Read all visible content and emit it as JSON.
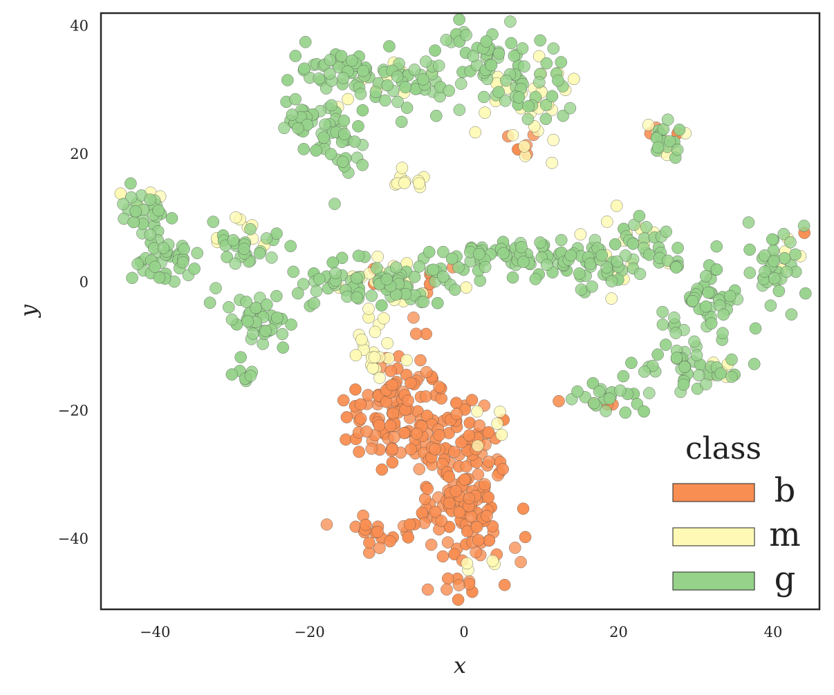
{
  "chart_data": {
    "type": "scatter",
    "xlabel": "x",
    "ylabel": "y",
    "xlim": [
      -47,
      46
    ],
    "ylim": [
      -51,
      42
    ],
    "xticks": [
      -40,
      -20,
      0,
      20,
      40
    ],
    "yticks": [
      -40,
      -20,
      0,
      20,
      40
    ],
    "xtick_labels": [
      "−40",
      "−20",
      "0",
      "20",
      "40"
    ],
    "ytick_labels": [
      "−40",
      "−20",
      "0",
      "20",
      "40"
    ],
    "grid": false,
    "legend": {
      "title": "class",
      "placement": "bottom-right",
      "entries": [
        "b",
        "m",
        "g"
      ]
    },
    "colors": {
      "b": "#f98e52",
      "m": "#fefab5",
      "g": "#96d28a"
    },
    "series": [
      {
        "name": "b",
        "clusters": [
          {
            "x": -8,
            "y": -20,
            "sx": 3.5,
            "sy": 5,
            "n": 120
          },
          {
            "x": 0,
            "y": -34,
            "sx": 3,
            "sy": 6,
            "n": 130
          },
          {
            "x": 2,
            "y": -24,
            "sx": 2,
            "sy": 3,
            "n": 25
          },
          {
            "x": -10,
            "y": -39,
            "sx": 2.5,
            "sy": 1.5,
            "n": 20
          },
          {
            "x": 7,
            "y": 21,
            "sx": 1.5,
            "sy": 1.5,
            "n": 5
          },
          {
            "x": 26,
            "y": 24,
            "sx": 1,
            "sy": 1,
            "n": 3
          },
          {
            "x": 18,
            "y": -20,
            "sx": 2,
            "sy": 1,
            "n": 4
          },
          {
            "x": -8,
            "y": 1,
            "sx": 5,
            "sy": 1.5,
            "n": 8
          },
          {
            "x": 44,
            "y": 8,
            "sx": 0.5,
            "sy": 0.5,
            "n": 1
          }
        ]
      },
      {
        "name": "m",
        "clusters": [
          {
            "x": -11,
            "y": -11,
            "sx": 2,
            "sy": 2,
            "n": 20
          },
          {
            "x": 3,
            "y": -22,
            "sx": 1.5,
            "sy": 1.5,
            "n": 5
          },
          {
            "x": 9,
            "y": 28,
            "sx": 3,
            "sy": 4,
            "n": 30
          },
          {
            "x": -7,
            "y": 16,
            "sx": 1.5,
            "sy": 1,
            "n": 10
          },
          {
            "x": 20,
            "y": 6,
            "sx": 3,
            "sy": 3,
            "n": 15
          },
          {
            "x": -10,
            "y": 0,
            "sx": 5,
            "sy": 2,
            "n": 20
          },
          {
            "x": 26,
            "y": 22,
            "sx": 1.5,
            "sy": 1.5,
            "n": 10
          },
          {
            "x": 34,
            "y": -14,
            "sx": 1,
            "sy": 2,
            "n": 6
          },
          {
            "x": -42,
            "y": 13,
            "sx": 2,
            "sy": 1,
            "n": 4
          },
          {
            "x": -28,
            "y": 7,
            "sx": 3,
            "sy": 1.5,
            "n": 8
          },
          {
            "x": 1,
            "y": -43,
            "sx": 1.5,
            "sy": 1.5,
            "n": 4
          },
          {
            "x": -8,
            "y": 33,
            "sx": 4,
            "sy": 3,
            "n": 10
          },
          {
            "x": 42,
            "y": 4,
            "sx": 1.5,
            "sy": 2,
            "n": 5
          }
        ]
      },
      {
        "name": "g",
        "clusters": [
          {
            "x": -16,
            "y": 33,
            "sx": 3,
            "sy": 1.5,
            "n": 40
          },
          {
            "x": -8,
            "y": 31,
            "sx": 3,
            "sy": 2,
            "n": 40
          },
          {
            "x": -20,
            "y": 24,
            "sx": 2.5,
            "sy": 2,
            "n": 30
          },
          {
            "x": -16,
            "y": 21,
            "sx": 1.5,
            "sy": 3,
            "n": 25
          },
          {
            "x": 3,
            "y": 35,
            "sx": 3.5,
            "sy": 2.5,
            "n": 45
          },
          {
            "x": 9,
            "y": 30,
            "sx": 3,
            "sy": 2.5,
            "n": 30
          },
          {
            "x": 26,
            "y": 22,
            "sx": 1.5,
            "sy": 2,
            "n": 15
          },
          {
            "x": -41,
            "y": 11,
            "sx": 2,
            "sy": 2,
            "n": 25
          },
          {
            "x": -39,
            "y": 4,
            "sx": 2,
            "sy": 2,
            "n": 40
          },
          {
            "x": -28,
            "y": 6,
            "sx": 2.5,
            "sy": 1.5,
            "n": 25
          },
          {
            "x": -27,
            "y": -6,
            "sx": 2.5,
            "sy": 2.5,
            "n": 40
          },
          {
            "x": -29,
            "y": -15,
            "sx": 1,
            "sy": 1,
            "n": 6
          },
          {
            "x": -10,
            "y": 0,
            "sx": 6,
            "sy": 2,
            "n": 80
          },
          {
            "x": 8,
            "y": 4,
            "sx": 4.5,
            "sy": 1.5,
            "n": 60
          },
          {
            "x": 16,
            "y": 3,
            "sx": 3,
            "sy": 2,
            "n": 40
          },
          {
            "x": 24,
            "y": 6,
            "sx": 2,
            "sy": 2,
            "n": 20
          },
          {
            "x": 40,
            "y": 3,
            "sx": 3,
            "sy": 3,
            "n": 35
          },
          {
            "x": 32,
            "y": -4,
            "sx": 2.5,
            "sy": 2.5,
            "n": 35
          },
          {
            "x": 28,
            "y": -8,
            "sx": 1.5,
            "sy": 3,
            "n": 15
          },
          {
            "x": 30,
            "y": -14,
            "sx": 4,
            "sy": 1.5,
            "n": 35
          },
          {
            "x": 20,
            "y": -18,
            "sx": 3,
            "sy": 1.5,
            "n": 20
          },
          {
            "x": 27,
            "y": 3,
            "sx": 0.8,
            "sy": 0.5,
            "n": 6
          }
        ]
      }
    ]
  }
}
